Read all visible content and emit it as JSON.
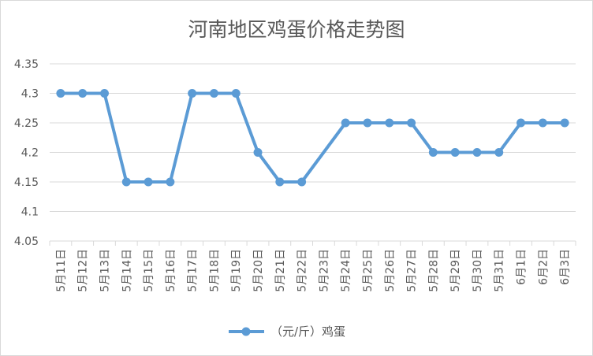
{
  "chart_data": {
    "type": "line",
    "title": "河南地区鸡蛋价格走势图",
    "xlabel": "",
    "ylabel": "",
    "categories": [
      "5月11日",
      "5月12日",
      "5月13日",
      "5月14日",
      "5月15日",
      "5月16日",
      "5月17日",
      "5月18日",
      "5月19日",
      "5月20日",
      "5月21日",
      "5月22日",
      "5月23日",
      "5月24日",
      "5月25日",
      "5月26日",
      "5月27日",
      "5月28日",
      "5月29日",
      "5月30日",
      "5月31日",
      "6月1日",
      "6月2日",
      "6月3日"
    ],
    "series": [
      {
        "name": "（元/斤）鸡蛋",
        "color": "#5b9bd5",
        "values": [
          4.3,
          4.3,
          4.3,
          4.15,
          4.15,
          4.15,
          4.3,
          4.3,
          4.3,
          4.2,
          4.15,
          4.15,
          null,
          4.25,
          4.25,
          4.25,
          4.25,
          4.2,
          4.2,
          4.2,
          4.2,
          4.25,
          4.25,
          4.25
        ]
      }
    ],
    "ylim": [
      4.05,
      4.35
    ],
    "yticks": [
      "4.05",
      "4.1",
      "4.15",
      "4.2",
      "4.25",
      "4.3",
      "4.35"
    ],
    "grid": true,
    "legend": "bottom",
    "gridColor": "#d9d9d9",
    "textColor": "#595959"
  }
}
